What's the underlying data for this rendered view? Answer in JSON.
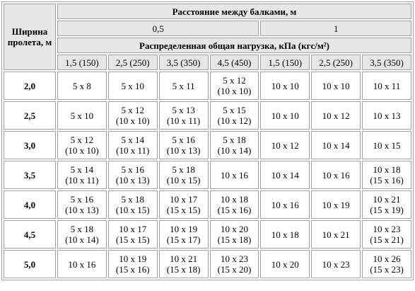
{
  "header": {
    "span_label": "Ширина пролета, м",
    "spacing_label": "Расстояние между балками, м",
    "spacings": [
      "0,5",
      "1"
    ],
    "load_label": "Распределенная общая нагрузка, кПа (кгс/м²)",
    "loads": [
      "1,5 (150)",
      "2,5 (250)",
      "3,5 (350)",
      "4,5 (450)",
      "1,5 (150)",
      "2,5 (250)",
      "3,5 (350)"
    ]
  },
  "rows": [
    {
      "span": "2,0",
      "cells": [
        [
          "5 x 8"
        ],
        [
          "5 x 10"
        ],
        [
          "5 x 11"
        ],
        [
          "5 x 12",
          "(10 x 10)"
        ],
        [
          "10 x 10"
        ],
        [
          "10 x 10"
        ],
        [
          "10 x 11"
        ]
      ]
    },
    {
      "span": "2,5",
      "cells": [
        [
          "5 x 10"
        ],
        [
          "5 x 12",
          "(10 x 10)"
        ],
        [
          "5 x 13",
          "(10 x 11)"
        ],
        [
          "5 x 15",
          "(10 x 12)"
        ],
        [
          "10 x 10"
        ],
        [
          "10 x 12"
        ],
        [
          "10 x 13"
        ]
      ]
    },
    {
      "span": "3,0",
      "cells": [
        [
          "5 x 12",
          "(10 x 10)"
        ],
        [
          "5 x 14",
          "(10 x 11)"
        ],
        [
          "5 x 16",
          "(10 x 13)"
        ],
        [
          "5 x 18",
          "(10 x 14)"
        ],
        [
          "10 x 12"
        ],
        [
          "10 x 14"
        ],
        [
          "10 x 15"
        ]
      ]
    },
    {
      "span": "3,5",
      "cells": [
        [
          "5 x 14",
          "(10 x 11)"
        ],
        [
          "5 x 16",
          "(10 x 13)"
        ],
        [
          "5 x 18",
          "(10 x 15)"
        ],
        [
          "10 x 16"
        ],
        [
          "10 x 14"
        ],
        [
          "10 x 16"
        ],
        [
          "10 x 18",
          "(15 x 16)"
        ]
      ]
    },
    {
      "span": "4,0",
      "cells": [
        [
          "5 x 16",
          "(10 x 13)"
        ],
        [
          "5 x 18",
          "(10 x 15)"
        ],
        [
          "10 x 17",
          "(15 x 15)"
        ],
        [
          "10 x 18",
          "(15 x 16)"
        ],
        [
          "10 x 16"
        ],
        [
          "10 x 19"
        ],
        [
          "10 x 21",
          "(15 x 19)"
        ]
      ]
    },
    {
      "span": "4,5",
      "cells": [
        [
          "5 x 18",
          "(10 x 14)"
        ],
        [
          "10 x 17",
          "(15 x 15)"
        ],
        [
          "10 x 19",
          "(15 x 17)"
        ],
        [
          "10 x 20",
          "(15 x 18)"
        ],
        [
          "10 x 18"
        ],
        [
          "10 x 21"
        ],
        [
          "10 x 23",
          "(15 x 21)"
        ]
      ]
    },
    {
      "span": "5,0",
      "cells": [
        [
          "10 x 16"
        ],
        [
          "10 x 19",
          "(15 x 16)"
        ],
        [
          "10 x 21",
          "(15 x 18)"
        ],
        [
          "10 x 23",
          "(15 x 20)"
        ],
        [
          "10 x 20"
        ],
        [
          "10 x 23"
        ],
        [
          "10 x 26",
          "(15 x 23)"
        ]
      ]
    }
  ]
}
